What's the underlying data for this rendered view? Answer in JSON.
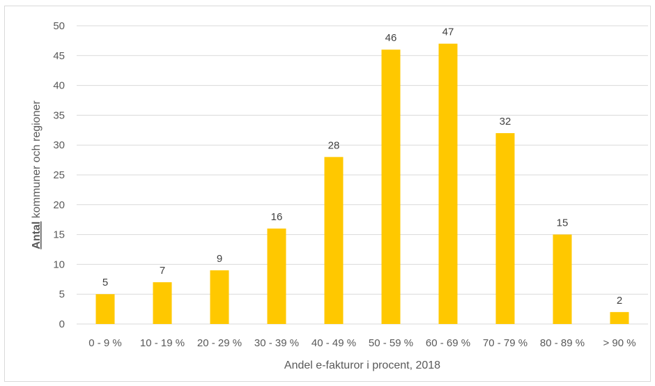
{
  "chart_data": {
    "type": "bar",
    "categories": [
      "0 - 9 %",
      "10 - 19 %",
      "20 - 29 %",
      "30 - 39 %",
      "40 - 49 %",
      "50 - 59 %",
      "60 - 69 %",
      "70 - 79 %",
      "80 - 89 %",
      "> 90 %"
    ],
    "values": [
      5,
      7,
      9,
      16,
      28,
      46,
      47,
      32,
      15,
      2
    ],
    "title": "",
    "xlabel": "Andel e-fakturor i procent, 2018",
    "ylabel_underlined": "Antal",
    "ylabel_rest": " kommuner och regioner",
    "ylim": [
      0,
      50
    ],
    "yticks": [
      0,
      5,
      10,
      15,
      20,
      25,
      30,
      35,
      40,
      45,
      50
    ],
    "grid": true,
    "legend": "none",
    "bar_color": "#FFC800",
    "grid_color": "#d9d9d9"
  }
}
